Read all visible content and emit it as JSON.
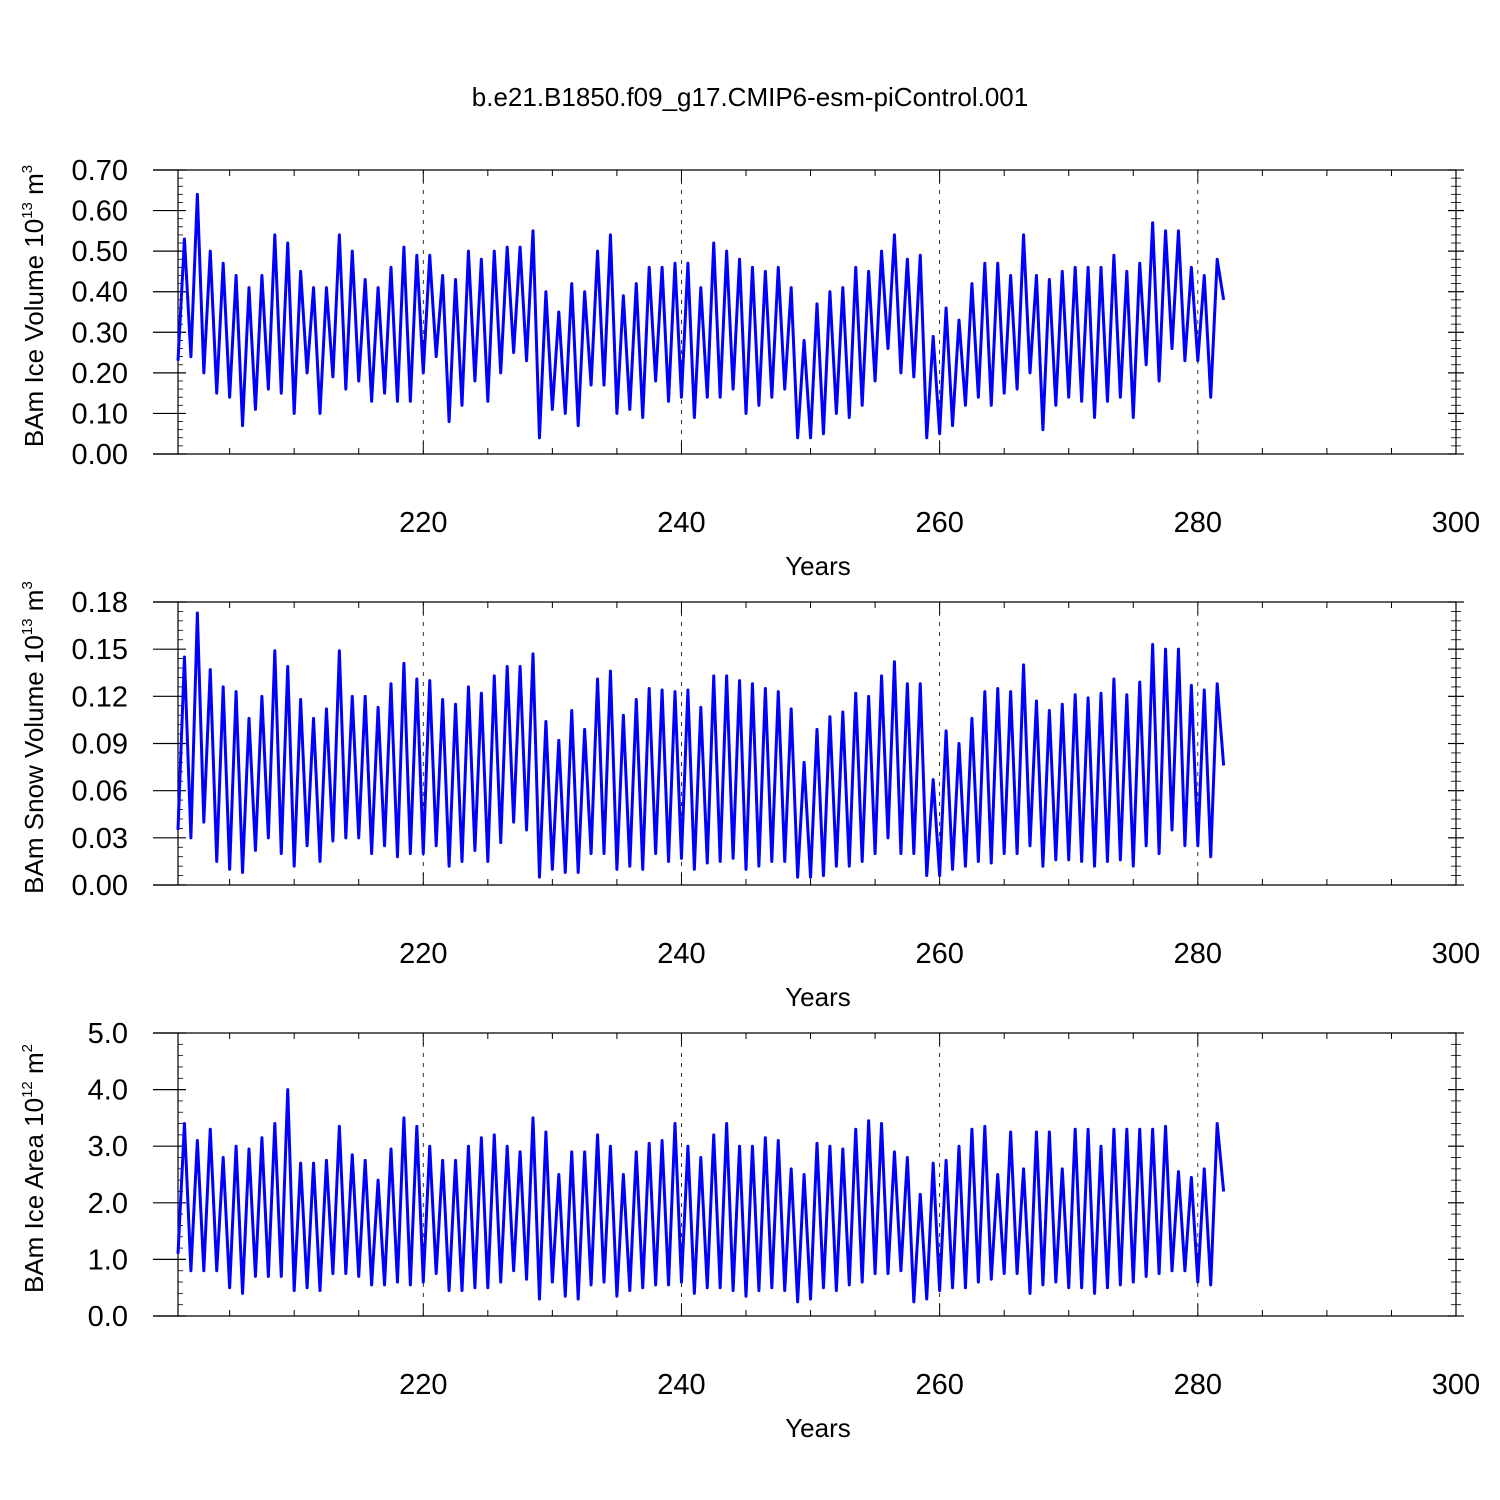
{
  "title": "b.e21.B1850.f09_g17.CMIP6-esm-piControl.001",
  "line_color": "#0000ff",
  "chart_data": [
    {
      "type": "line",
      "ylabel": {
        "text": "BAm Ice Volume 10",
        "exp": "13",
        "unit": " m",
        "unit_exp": "3"
      },
      "xlabel": "Years",
      "xlim": [
        201,
        300
      ],
      "xticks": [
        "220",
        "240",
        "260",
        "280",
        "300"
      ],
      "ylim": [
        0,
        0.7
      ],
      "yticks": [
        "0.00",
        "0.10",
        "0.20",
        "0.30",
        "0.40",
        "0.50",
        "0.60",
        "0.70"
      ],
      "grid_x": "dashed",
      "series": [
        {
          "x_start": 201,
          "x_step": 0.5,
          "values": [
            0.23,
            0.53,
            0.24,
            0.64,
            0.2,
            0.5,
            0.15,
            0.47,
            0.14,
            0.44,
            0.07,
            0.41,
            0.11,
            0.44,
            0.16,
            0.54,
            0.15,
            0.52,
            0.1,
            0.45,
            0.2,
            0.41,
            0.1,
            0.41,
            0.19,
            0.54,
            0.16,
            0.5,
            0.18,
            0.43,
            0.13,
            0.41,
            0.15,
            0.46,
            0.13,
            0.51,
            0.13,
            0.49,
            0.2,
            0.49,
            0.24,
            0.44,
            0.08,
            0.43,
            0.12,
            0.5,
            0.18,
            0.48,
            0.13,
            0.5,
            0.2,
            0.51,
            0.25,
            0.51,
            0.23,
            0.55,
            0.04,
            0.4,
            0.11,
            0.35,
            0.1,
            0.42,
            0.07,
            0.4,
            0.17,
            0.5,
            0.17,
            0.54,
            0.1,
            0.39,
            0.11,
            0.42,
            0.09,
            0.46,
            0.18,
            0.46,
            0.13,
            0.47,
            0.14,
            0.47,
            0.09,
            0.41,
            0.14,
            0.52,
            0.14,
            0.5,
            0.16,
            0.48,
            0.1,
            0.46,
            0.12,
            0.45,
            0.14,
            0.46,
            0.16,
            0.41,
            0.04,
            0.28,
            0.04,
            0.37,
            0.05,
            0.4,
            0.1,
            0.41,
            0.09,
            0.46,
            0.12,
            0.45,
            0.18,
            0.5,
            0.26,
            0.54,
            0.2,
            0.48,
            0.19,
            0.49,
            0.04,
            0.29,
            0.05,
            0.36,
            0.07,
            0.33,
            0.12,
            0.42,
            0.14,
            0.47,
            0.12,
            0.47,
            0.15,
            0.44,
            0.16,
            0.54,
            0.2,
            0.44,
            0.06,
            0.43,
            0.12,
            0.45,
            0.14,
            0.46,
            0.13,
            0.46,
            0.09,
            0.46,
            0.13,
            0.49,
            0.14,
            0.45,
            0.09,
            0.47,
            0.22,
            0.57,
            0.18,
            0.55,
            0.26,
            0.55,
            0.23,
            0.46,
            0.23,
            0.44,
            0.14,
            0.48,
            0.38
          ]
        }
      ]
    },
    {
      "type": "line",
      "ylabel": {
        "text": "BAm Snow Volume 10",
        "exp": "13",
        "unit": " m",
        "unit_exp": "3"
      },
      "xlabel": "Years",
      "xlim": [
        201,
        300
      ],
      "xticks": [
        "220",
        "240",
        "260",
        "280",
        "300"
      ],
      "ylim": [
        0,
        0.18
      ],
      "yticks": [
        "0.00",
        "0.03",
        "0.06",
        "0.09",
        "0.12",
        "0.15",
        "0.18"
      ],
      "grid_x": "dashed",
      "series": [
        {
          "x_start": 201,
          "x_step": 0.5,
          "values": [
            0.035,
            0.145,
            0.03,
            0.173,
            0.04,
            0.137,
            0.015,
            0.126,
            0.01,
            0.123,
            0.008,
            0.106,
            0.022,
            0.12,
            0.03,
            0.149,
            0.02,
            0.139,
            0.012,
            0.118,
            0.025,
            0.106,
            0.015,
            0.112,
            0.028,
            0.149,
            0.03,
            0.12,
            0.03,
            0.12,
            0.02,
            0.113,
            0.025,
            0.128,
            0.018,
            0.141,
            0.02,
            0.131,
            0.02,
            0.13,
            0.025,
            0.118,
            0.012,
            0.115,
            0.015,
            0.126,
            0.022,
            0.122,
            0.015,
            0.133,
            0.027,
            0.139,
            0.04,
            0.139,
            0.035,
            0.147,
            0.005,
            0.104,
            0.01,
            0.092,
            0.008,
            0.111,
            0.008,
            0.099,
            0.02,
            0.131,
            0.02,
            0.136,
            0.01,
            0.108,
            0.012,
            0.118,
            0.01,
            0.125,
            0.02,
            0.124,
            0.015,
            0.123,
            0.017,
            0.124,
            0.01,
            0.113,
            0.014,
            0.133,
            0.015,
            0.133,
            0.017,
            0.13,
            0.01,
            0.128,
            0.012,
            0.125,
            0.015,
            0.123,
            0.015,
            0.112,
            0.005,
            0.078,
            0.005,
            0.099,
            0.006,
            0.107,
            0.012,
            0.11,
            0.012,
            0.122,
            0.015,
            0.12,
            0.02,
            0.133,
            0.03,
            0.142,
            0.02,
            0.128,
            0.02,
            0.128,
            0.006,
            0.067,
            0.006,
            0.098,
            0.01,
            0.09,
            0.012,
            0.106,
            0.015,
            0.123,
            0.014,
            0.125,
            0.02,
            0.123,
            0.02,
            0.14,
            0.025,
            0.117,
            0.012,
            0.111,
            0.016,
            0.115,
            0.016,
            0.121,
            0.015,
            0.119,
            0.012,
            0.122,
            0.015,
            0.131,
            0.016,
            0.121,
            0.012,
            0.129,
            0.025,
            0.153,
            0.02,
            0.15,
            0.035,
            0.15,
            0.025,
            0.127,
            0.025,
            0.124,
            0.018,
            0.128,
            0.076
          ]
        }
      ]
    },
    {
      "type": "line",
      "ylabel": {
        "text": "BAm Ice Area 10",
        "exp": "12",
        "unit": " m",
        "unit_exp": "2"
      },
      "xlabel": "Years",
      "xlim": [
        201,
        300
      ],
      "xticks": [
        "220",
        "240",
        "260",
        "280",
        "300"
      ],
      "ylim": [
        0,
        5
      ],
      "yticks": [
        "0.0",
        "1.0",
        "2.0",
        "3.0",
        "4.0",
        "5.0"
      ],
      "grid_x": "dashed",
      "series": [
        {
          "x_start": 201,
          "x_step": 0.5,
          "values": [
            1.1,
            3.4,
            0.8,
            3.1,
            0.8,
            3.3,
            0.8,
            2.8,
            0.5,
            3.0,
            0.4,
            2.95,
            0.7,
            3.15,
            0.7,
            3.4,
            0.7,
            4.0,
            0.45,
            2.7,
            0.5,
            2.7,
            0.45,
            2.75,
            0.75,
            3.35,
            0.75,
            2.85,
            0.7,
            2.75,
            0.55,
            2.4,
            0.55,
            2.95,
            0.6,
            3.5,
            0.55,
            3.35,
            0.6,
            3.0,
            0.75,
            2.75,
            0.45,
            2.75,
            0.45,
            3.0,
            0.5,
            3.15,
            0.5,
            3.2,
            0.6,
            3.0,
            0.8,
            2.9,
            0.65,
            3.5,
            0.3,
            3.25,
            0.6,
            2.5,
            0.35,
            2.9,
            0.3,
            2.9,
            0.55,
            3.2,
            0.6,
            3.0,
            0.35,
            2.5,
            0.45,
            2.9,
            0.5,
            3.05,
            0.55,
            3.1,
            0.55,
            3.4,
            0.6,
            3.0,
            0.4,
            2.8,
            0.5,
            3.2,
            0.5,
            3.4,
            0.45,
            3.0,
            0.35,
            3.0,
            0.45,
            3.15,
            0.5,
            3.1,
            0.45,
            2.6,
            0.25,
            2.5,
            0.3,
            3.05,
            0.5,
            3.0,
            0.45,
            2.95,
            0.55,
            3.3,
            0.6,
            3.45,
            0.75,
            3.4,
            0.75,
            2.9,
            0.8,
            2.8,
            0.25,
            2.15,
            0.3,
            2.7,
            0.45,
            2.75,
            0.5,
            3.0,
            0.5,
            3.3,
            0.6,
            3.35,
            0.65,
            2.5,
            0.75,
            3.25,
            0.75,
            2.6,
            0.4,
            3.25,
            0.55,
            3.25,
            0.6,
            2.6,
            0.5,
            3.3,
            0.5,
            3.3,
            0.4,
            3.0,
            0.5,
            3.3,
            0.55,
            3.3,
            0.6,
            3.3,
            0.7,
            3.3,
            0.75,
            3.35,
            0.8,
            2.55,
            0.8,
            2.45,
            0.6,
            2.6,
            0.55,
            3.4,
            2.2
          ]
        }
      ]
    }
  ]
}
